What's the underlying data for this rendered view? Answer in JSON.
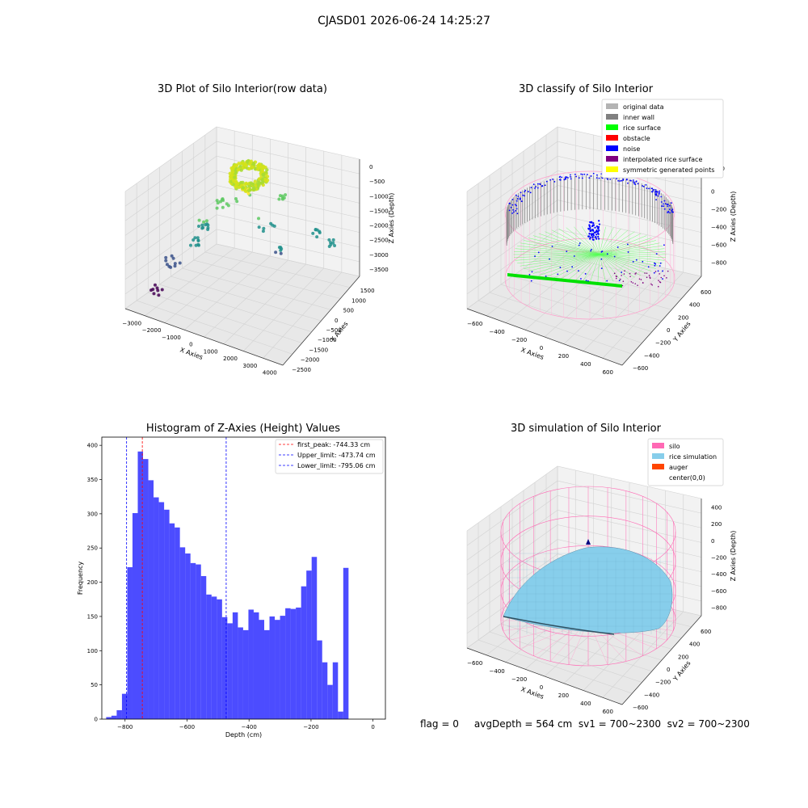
{
  "suptitle": "CJASD01 2026-06-24 14:25:27",
  "panels": {
    "raw": {
      "title": "3D Plot of Silo Interior(row data)",
      "xlabel": "X Axies",
      "ylabel": "Y Axies",
      "zlabel": "Z Axies (Depth)",
      "xticks": [
        "−3000",
        "−2000",
        "−1000",
        "0",
        "1000",
        "2000",
        "3000",
        "4000"
      ],
      "yticks": [
        "1500",
        "1000",
        "500",
        "0",
        "−500",
        "−1000",
        "−1500",
        "−2000",
        "−2500"
      ],
      "zticks": [
        "0",
        "−500",
        "−1000",
        "−1500",
        "−2000",
        "−2500",
        "−3000",
        "−3500"
      ]
    },
    "classify": {
      "title": "3D classify of Silo Interior",
      "xlabel": "X Axies",
      "ylabel": "Y Axies",
      "zlabel": "Z Axies (Depth)",
      "xticks": [
        "−600",
        "−400",
        "−200",
        "0",
        "200",
        "400",
        "600"
      ],
      "yticks": [
        "600",
        "400",
        "200",
        "0",
        "−200",
        "−400",
        "−600"
      ],
      "zticks": [
        "200",
        "0",
        "−200",
        "−400",
        "−600",
        "−800"
      ],
      "ztop": "00",
      "legend": [
        {
          "label": "original data",
          "color": "#b3b3b3"
        },
        {
          "label": "inner wall",
          "color": "#808080"
        },
        {
          "label": "rice surface",
          "color": "#00ff00"
        },
        {
          "label": "obstacle",
          "color": "#ff0000"
        },
        {
          "label": "noise",
          "color": "#0000ff"
        },
        {
          "label": "interpolated rice surface",
          "color": "#800080"
        },
        {
          "label": "symmetric generated points",
          "color": "#ffff00"
        }
      ]
    },
    "simulation": {
      "title": "3D simulation of Silo Interior",
      "xlabel": "X Axies",
      "ylabel": "Y Axies",
      "zlabel": "Z Axies (Depth)",
      "xticks": [
        "−600",
        "−400",
        "−200",
        "0",
        "200",
        "400",
        "600"
      ],
      "yticks": [
        "600",
        "400",
        "200",
        "0",
        "−200",
        "−400",
        "−600"
      ],
      "zticks": [
        "400",
        "200",
        "0",
        "−200",
        "−400",
        "−600",
        "−800"
      ],
      "legend": [
        {
          "label": "silo",
          "color": "#ff69b4"
        },
        {
          "label": "rice simulation",
          "color": "#87ceeb"
        },
        {
          "label": "auger",
          "color": "#ff4500"
        },
        {
          "label": "center(0,0)",
          "color": "#ffffff"
        }
      ]
    }
  },
  "footer": {
    "flag_text": "flag = 0     avgDepth = 564 cm  sv1 = 700~2300  sv2 = 700~2300"
  },
  "chart_data": [
    {
      "type": "bar",
      "title": "Histogram of Z-Axies (Height) Values",
      "xlabel": "Depth (cm)",
      "ylabel": "Frequency",
      "xlim": [
        -875,
        40
      ],
      "ylim": [
        0,
        412
      ],
      "xticks": [
        -800,
        -600,
        -400,
        -200,
        0
      ],
      "yticks": [
        0,
        50,
        100,
        150,
        200,
        250,
        300,
        350,
        400
      ],
      "bar_color": "#0000ff",
      "bin_width": 17,
      "bin_start": -861,
      "values": [
        3,
        5,
        13,
        37,
        222,
        301,
        391,
        380,
        349,
        324,
        317,
        306,
        286,
        280,
        251,
        242,
        228,
        226,
        209,
        182,
        179,
        175,
        149,
        140,
        156,
        134,
        130,
        160,
        156,
        145,
        130,
        150,
        145,
        151,
        162,
        161,
        163,
        194,
        217,
        237,
        115,
        83,
        50,
        83,
        11,
        221
      ],
      "vlines": [
        {
          "label": "first_peak: -744.33 cm",
          "x": -744.33,
          "color": "#ff0000"
        },
        {
          "label": "Upper_limit: -473.74 cm",
          "x": -473.74,
          "color": "#0000ff"
        },
        {
          "label": "Lower_limit: -795.06 cm",
          "x": -795.06,
          "color": "#0000ff"
        }
      ],
      "legend_position": "upper right"
    }
  ]
}
